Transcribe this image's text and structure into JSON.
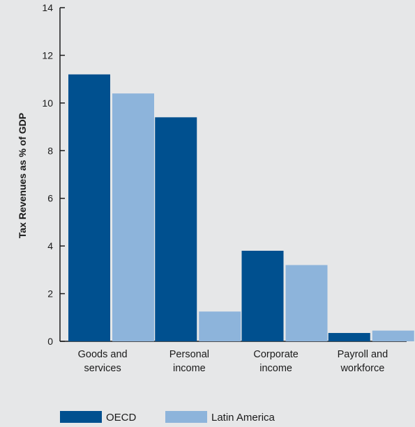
{
  "chart_data": {
    "type": "bar",
    "categories": [
      [
        "Goods and",
        "services"
      ],
      [
        "Personal",
        "income"
      ],
      [
        "Corporate",
        "income"
      ],
      [
        "Payroll and",
        "workforce"
      ]
    ],
    "series": [
      {
        "name": "OECD",
        "color": "#00508f",
        "values": [
          11.2,
          9.4,
          3.8,
          0.35
        ]
      },
      {
        "name": "Latin America",
        "color": "#8db4db",
        "values": [
          10.4,
          1.25,
          3.2,
          0.45
        ]
      }
    ],
    "title": "",
    "xlabel": "",
    "ylabel": "Tax Revenues as % of GDP",
    "ylim": [
      0,
      14
    ],
    "yticks": [
      0,
      2,
      4,
      6,
      8,
      10,
      12,
      14
    ],
    "grid": false,
    "legend": "bottom"
  }
}
